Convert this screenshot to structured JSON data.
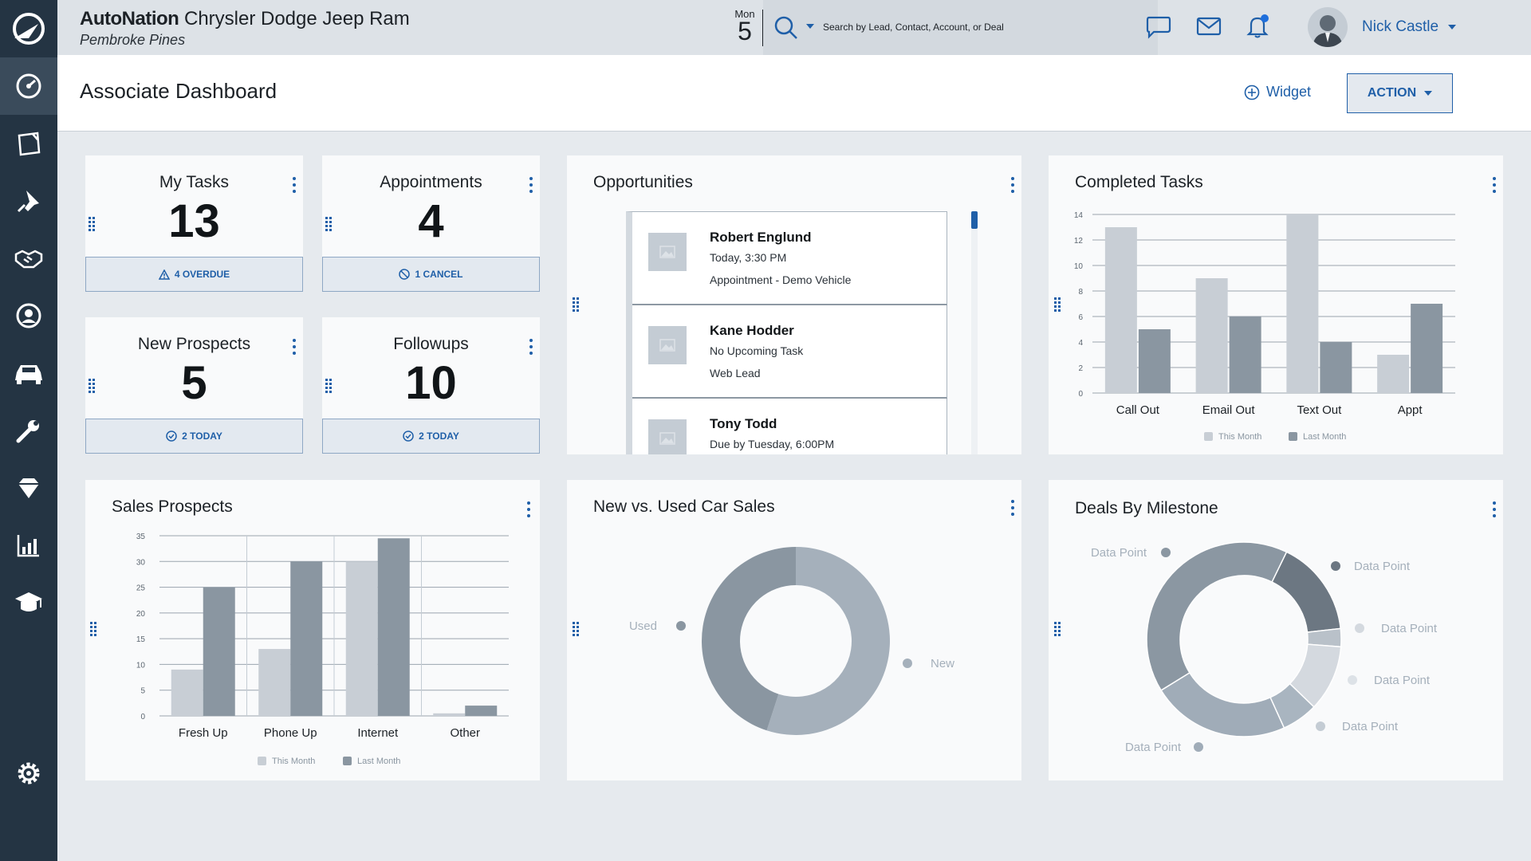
{
  "header": {
    "brand_logo": "AutoNation",
    "brand_name": "Chrysler Dodge Jeep Ram",
    "location": "Pembroke Pines",
    "date_dow": "Mon",
    "date_day": "5",
    "search_placeholder": "Search by Lead, Contact, Account, or Deal",
    "user_name": "Nick Castle"
  },
  "page": {
    "title": "Associate Dashboard",
    "widget_label": "Widget",
    "action_label": "ACTION"
  },
  "sidebar": {
    "items": [
      "dashboard-icon",
      "notes-icon",
      "pin-icon",
      "handshake-icon",
      "contact-icon",
      "car-icon",
      "wrench-icon",
      "diamond-icon",
      "reports-icon",
      "training-icon",
      "settings-icon"
    ]
  },
  "stats": [
    {
      "title": "My Tasks",
      "value": "13",
      "footer": "4 OVERDUE",
      "footer_icon": "warning-icon"
    },
    {
      "title": "Appointments",
      "value": "4",
      "footer": "1 CANCEL",
      "footer_icon": "cancel-icon"
    },
    {
      "title": "New Prospects",
      "value": "5",
      "footer": "2 TODAY",
      "footer_icon": "check-circle-icon"
    },
    {
      "title": "Followups",
      "value": "10",
      "footer": "2 TODAY",
      "footer_icon": "check-circle-icon"
    }
  ],
  "opportunities": {
    "title": "Opportunities",
    "items": [
      {
        "name": "Robert Englund",
        "sub": "Today, 3:30 PM",
        "type": "Appointment - Demo Vehicle"
      },
      {
        "name": "Kane Hodder",
        "sub": "No Upcoming Task",
        "type": "Web Lead"
      },
      {
        "name": "Tony Todd",
        "sub": "Due by Tuesday, 6:00PM",
        "type": ""
      }
    ]
  },
  "colors": {
    "accent": "#1f5fa8",
    "sidebar": "#243443",
    "this_month": "#c8ced5",
    "last_month": "#8a96a1"
  },
  "chart_data": [
    {
      "type": "bar",
      "title": "Completed Tasks",
      "categories": [
        "Call Out",
        "Email Out",
        "Text Out",
        "Appt"
      ],
      "series": [
        {
          "name": "This Month",
          "values": [
            13,
            9,
            14,
            3
          ]
        },
        {
          "name": "Last Month",
          "values": [
            5,
            6,
            4,
            7
          ]
        }
      ],
      "yticks": [
        "0",
        "2",
        "4",
        "6",
        "8",
        "10",
        "12",
        "14"
      ],
      "ylim": [
        0,
        14
      ],
      "grid": true,
      "legend": "bottom"
    },
    {
      "type": "bar",
      "title": "Sales Prospects",
      "categories": [
        "Fresh Up",
        "Phone Up",
        "Internet",
        "Other"
      ],
      "series": [
        {
          "name": "This Month",
          "values": [
            9,
            13,
            30,
            0.5
          ]
        },
        {
          "name": "Last Month",
          "values": [
            25,
            30,
            34.5,
            2
          ]
        }
      ],
      "yticks": [
        "0",
        "5",
        "10",
        "15",
        "20",
        "25",
        "30",
        "35"
      ],
      "ylim": [
        0,
        35
      ],
      "grid": true,
      "legend": "bottom"
    },
    {
      "type": "pie",
      "title": "New vs. Used Car Sales",
      "labels": [
        "New",
        "Used"
      ],
      "values": [
        55,
        45
      ],
      "colors": [
        "#a5b0bb",
        "#8a96a1"
      ]
    },
    {
      "type": "pie",
      "title": "Deals By Milestone",
      "labels": [
        "Data Point",
        "Data Point",
        "Data Point",
        "Data Point",
        "Data Point",
        "Data Point"
      ],
      "values": [
        16,
        3,
        11,
        6,
        23,
        41
      ],
      "colors": [
        "#6c7782",
        "#b9c1c9",
        "#d4d9df",
        "#a9b5c0",
        "#a0acb8",
        "#8b97a2"
      ]
    }
  ]
}
